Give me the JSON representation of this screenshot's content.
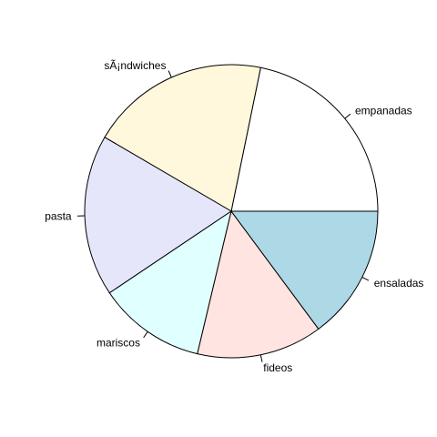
{
  "chart_data": {
    "type": "pie",
    "title": "",
    "slices": [
      {
        "label": "empanadas",
        "value": 0.22,
        "color": "#ffffff"
      },
      {
        "label": "sÃ¡ndwiches",
        "value": 0.2,
        "color": "#fff8dc"
      },
      {
        "label": "pasta",
        "value": 0.18,
        "color": "#e6e6fa"
      },
      {
        "label": "mariscos",
        "value": 0.12,
        "color": "#e0ffff"
      },
      {
        "label": "fideos",
        "value": 0.14,
        "color": "#ffe4e1"
      },
      {
        "label": "ensaladas",
        "value": 0.15,
        "color": "#add8e6"
      }
    ],
    "start_angle_deg": 0,
    "direction": "counterclockwise"
  }
}
